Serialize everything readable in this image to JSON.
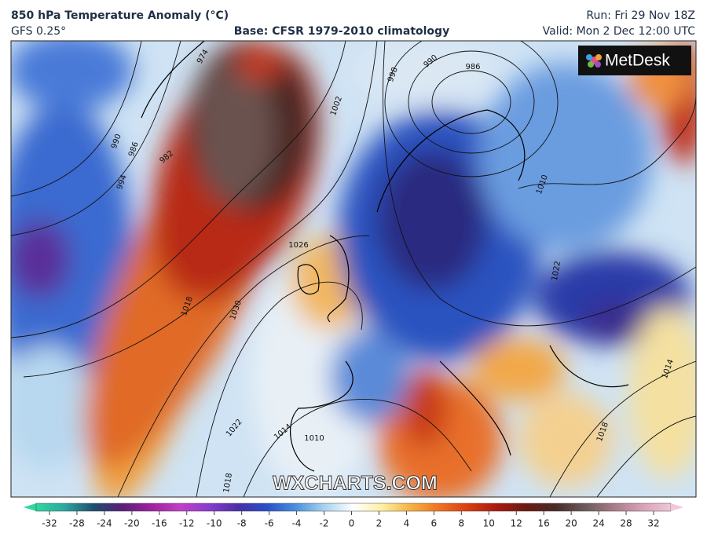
{
  "header": {
    "title": "850 hPa Temperature Anomaly (°C)",
    "model": "GFS 0.25°",
    "base": "Base: CFSR 1979-2010 climatology",
    "run": "Run: Fri 29 Nov 18Z",
    "valid": "Valid: Mon 2 Dec 12:00 UTC"
  },
  "map": {
    "logo": "MetDesk",
    "watermark": "WXCHARTS.COM",
    "isobar_labels": [
      974,
      990,
      986,
      982,
      994,
      998,
      1002,
      990,
      986,
      1026,
      1018,
      1030,
      1022,
      1014,
      1010,
      1018,
      1010,
      1022,
      1018,
      1014
    ]
  },
  "colorbar": {
    "ticks": [
      -32,
      -28,
      -24,
      -20,
      -16,
      -12,
      -10,
      -8,
      -6,
      -4,
      -2,
      0,
      2,
      4,
      6,
      8,
      10,
      12,
      16,
      20,
      24,
      28,
      32
    ],
    "colors": [
      "#2fd8a0",
      "#2aa7a0",
      "#1e4d6e",
      "#5a1e78",
      "#a020a0",
      "#c040c8",
      "#8a3ad0",
      "#4a2ea8",
      "#2850c8",
      "#4a90e0",
      "#a8d4f0",
      "#ffffff",
      "#fff0a0",
      "#f7b040",
      "#ef7020",
      "#d83a10",
      "#a81a10",
      "#6a1a10",
      "#4a2a28",
      "#6a5a5a",
      "#a87a86",
      "#d8a0b8",
      "#f0c8d8"
    ]
  }
}
